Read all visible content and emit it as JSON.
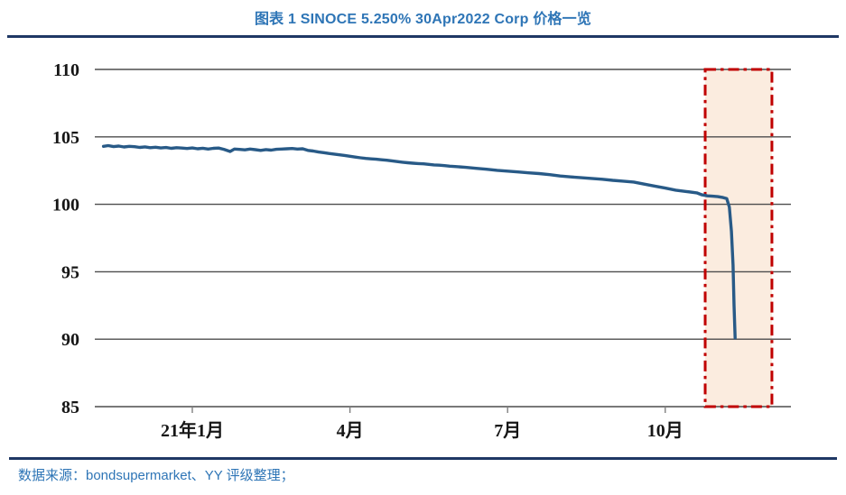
{
  "header": {
    "title": "图表 1 SINOCE 5.250% 30Apr2022 Corp 价格一览"
  },
  "footer": {
    "source": "数据来源：bondsupermarket、YY 评级整理；"
  },
  "colors": {
    "title_blue": "#2E75B6",
    "rule_navy": "#1F3864",
    "line_blue": "#285A87",
    "gridline": "#4D4D4D",
    "tick": "#7F7F7F",
    "axis_text": "#161616",
    "highlight_red": "#C00000",
    "highlight_fill": "#FBECDF"
  },
  "chart_data": {
    "type": "line",
    "title": "图表 1 SINOCE 5.250% 30Apr2022 Corp 价格一览",
    "xlabel": "",
    "ylabel": "",
    "x_unit": "months since 2021-01 (0 = 21年1月)",
    "x_range": [
      -1.86,
      11.4
    ],
    "ylim": [
      85,
      110
    ],
    "y_ticks": [
      110,
      105,
      100,
      95,
      90,
      85
    ],
    "x_ticks": [
      {
        "m": 0,
        "label": "21年1月"
      },
      {
        "m": 3,
        "label": "4月"
      },
      {
        "m": 6,
        "label": "7月"
      },
      {
        "m": 9,
        "label": "10月"
      }
    ],
    "grid": true,
    "legend": false,
    "highlight_box": {
      "x_from_m": 9.76,
      "x_to_m": 11.03,
      "y_from": 85,
      "y_to": 110,
      "style": "red dash-dot border with light peach fill"
    },
    "series": [
      {
        "name": "SINOCE 5.250% 30Apr2022 Corp price",
        "points": [
          [
            -1.69,
            104.3
          ],
          [
            -1.6,
            104.35
          ],
          [
            -1.5,
            104.28
          ],
          [
            -1.4,
            104.32
          ],
          [
            -1.3,
            104.25
          ],
          [
            -1.2,
            104.3
          ],
          [
            -1.1,
            104.27
          ],
          [
            -1.0,
            104.22
          ],
          [
            -0.9,
            104.26
          ],
          [
            -0.8,
            104.2
          ],
          [
            -0.7,
            104.23
          ],
          [
            -0.6,
            104.18
          ],
          [
            -0.5,
            104.21
          ],
          [
            -0.4,
            104.15
          ],
          [
            -0.3,
            104.2
          ],
          [
            -0.2,
            104.17
          ],
          [
            -0.1,
            104.14
          ],
          [
            0.0,
            104.18
          ],
          [
            0.1,
            104.12
          ],
          [
            0.2,
            104.16
          ],
          [
            0.3,
            104.1
          ],
          [
            0.4,
            104.15
          ],
          [
            0.5,
            104.17
          ],
          [
            0.6,
            104.08
          ],
          [
            0.72,
            103.92
          ],
          [
            0.8,
            104.1
          ],
          [
            0.9,
            104.07
          ],
          [
            1.0,
            104.04
          ],
          [
            1.1,
            104.1
          ],
          [
            1.2,
            104.05
          ],
          [
            1.3,
            104.0
          ],
          [
            1.4,
            104.06
          ],
          [
            1.5,
            104.02
          ],
          [
            1.6,
            104.08
          ],
          [
            1.7,
            104.1
          ],
          [
            1.8,
            104.12
          ],
          [
            1.9,
            104.14
          ],
          [
            2.0,
            104.1
          ],
          [
            2.1,
            104.12
          ],
          [
            2.2,
            104.0
          ],
          [
            2.3,
            103.95
          ],
          [
            2.4,
            103.88
          ],
          [
            2.5,
            103.83
          ],
          [
            2.6,
            103.77
          ],
          [
            2.7,
            103.72
          ],
          [
            2.8,
            103.67
          ],
          [
            2.9,
            103.62
          ],
          [
            3.0,
            103.56
          ],
          [
            3.1,
            103.5
          ],
          [
            3.2,
            103.45
          ],
          [
            3.3,
            103.4
          ],
          [
            3.4,
            103.37
          ],
          [
            3.5,
            103.34
          ],
          [
            3.6,
            103.3
          ],
          [
            3.7,
            103.27
          ],
          [
            3.8,
            103.22
          ],
          [
            3.9,
            103.17
          ],
          [
            4.0,
            103.12
          ],
          [
            4.1,
            103.08
          ],
          [
            4.2,
            103.05
          ],
          [
            4.3,
            103.02
          ],
          [
            4.4,
            103.0
          ],
          [
            4.5,
            102.96
          ],
          [
            4.6,
            102.92
          ],
          [
            4.7,
            102.9
          ],
          [
            4.8,
            102.87
          ],
          [
            4.9,
            102.83
          ],
          [
            5.0,
            102.8
          ],
          [
            5.2,
            102.74
          ],
          [
            5.4,
            102.67
          ],
          [
            5.6,
            102.6
          ],
          [
            5.8,
            102.52
          ],
          [
            6.0,
            102.46
          ],
          [
            6.2,
            102.4
          ],
          [
            6.4,
            102.33
          ],
          [
            6.6,
            102.28
          ],
          [
            6.8,
            102.2
          ],
          [
            7.0,
            102.1
          ],
          [
            7.2,
            102.03
          ],
          [
            7.4,
            101.97
          ],
          [
            7.6,
            101.92
          ],
          [
            7.8,
            101.86
          ],
          [
            8.0,
            101.78
          ],
          [
            8.2,
            101.72
          ],
          [
            8.4,
            101.65
          ],
          [
            8.6,
            101.5
          ],
          [
            8.8,
            101.35
          ],
          [
            9.0,
            101.2
          ],
          [
            9.2,
            101.05
          ],
          [
            9.4,
            100.95
          ],
          [
            9.6,
            100.85
          ],
          [
            9.7,
            100.7
          ],
          [
            9.8,
            100.63
          ],
          [
            9.9,
            100.6
          ],
          [
            10.0,
            100.57
          ],
          [
            10.1,
            100.5
          ],
          [
            10.17,
            100.42
          ],
          [
            10.22,
            99.8
          ],
          [
            10.26,
            98.0
          ],
          [
            10.29,
            95.5
          ],
          [
            10.31,
            92.5
          ],
          [
            10.33,
            90.1
          ]
        ]
      }
    ]
  }
}
